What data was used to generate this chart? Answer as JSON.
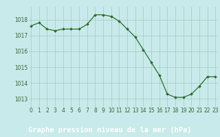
{
  "x": [
    0,
    1,
    2,
    3,
    4,
    5,
    6,
    7,
    8,
    9,
    10,
    11,
    12,
    13,
    14,
    15,
    16,
    17,
    18,
    19,
    20,
    21,
    22,
    23
  ],
  "y": [
    1017.6,
    1017.8,
    1017.4,
    1017.3,
    1017.4,
    1017.4,
    1017.4,
    1017.7,
    1018.3,
    1018.3,
    1018.2,
    1017.9,
    1017.4,
    1016.9,
    1016.1,
    1015.3,
    1014.5,
    1013.3,
    1013.1,
    1013.1,
    1013.3,
    1013.8,
    1014.4,
    1014.4
  ],
  "line_color": "#2d6a2d",
  "marker_color": "#2d6a2d",
  "bg_color": "#c8eaea",
  "grid_color": "#a0ccbb",
  "footer_bg": "#336633",
  "footer_text": "Graphe pression niveau de la mer (hPa)",
  "footer_text_color": "#ffffff",
  "ylim": [
    1012.5,
    1018.8
  ],
  "yticks": [
    1013,
    1014,
    1015,
    1016,
    1017,
    1018
  ],
  "xticks": [
    0,
    1,
    2,
    3,
    4,
    5,
    6,
    7,
    8,
    9,
    10,
    11,
    12,
    13,
    14,
    15,
    16,
    17,
    18,
    19,
    20,
    21,
    22,
    23
  ],
  "tick_label_color": "#336633",
  "tick_fontsize": 5.5,
  "footer_fontsize": 7.5,
  "xlim_left": -0.3,
  "xlim_right": 23.3
}
